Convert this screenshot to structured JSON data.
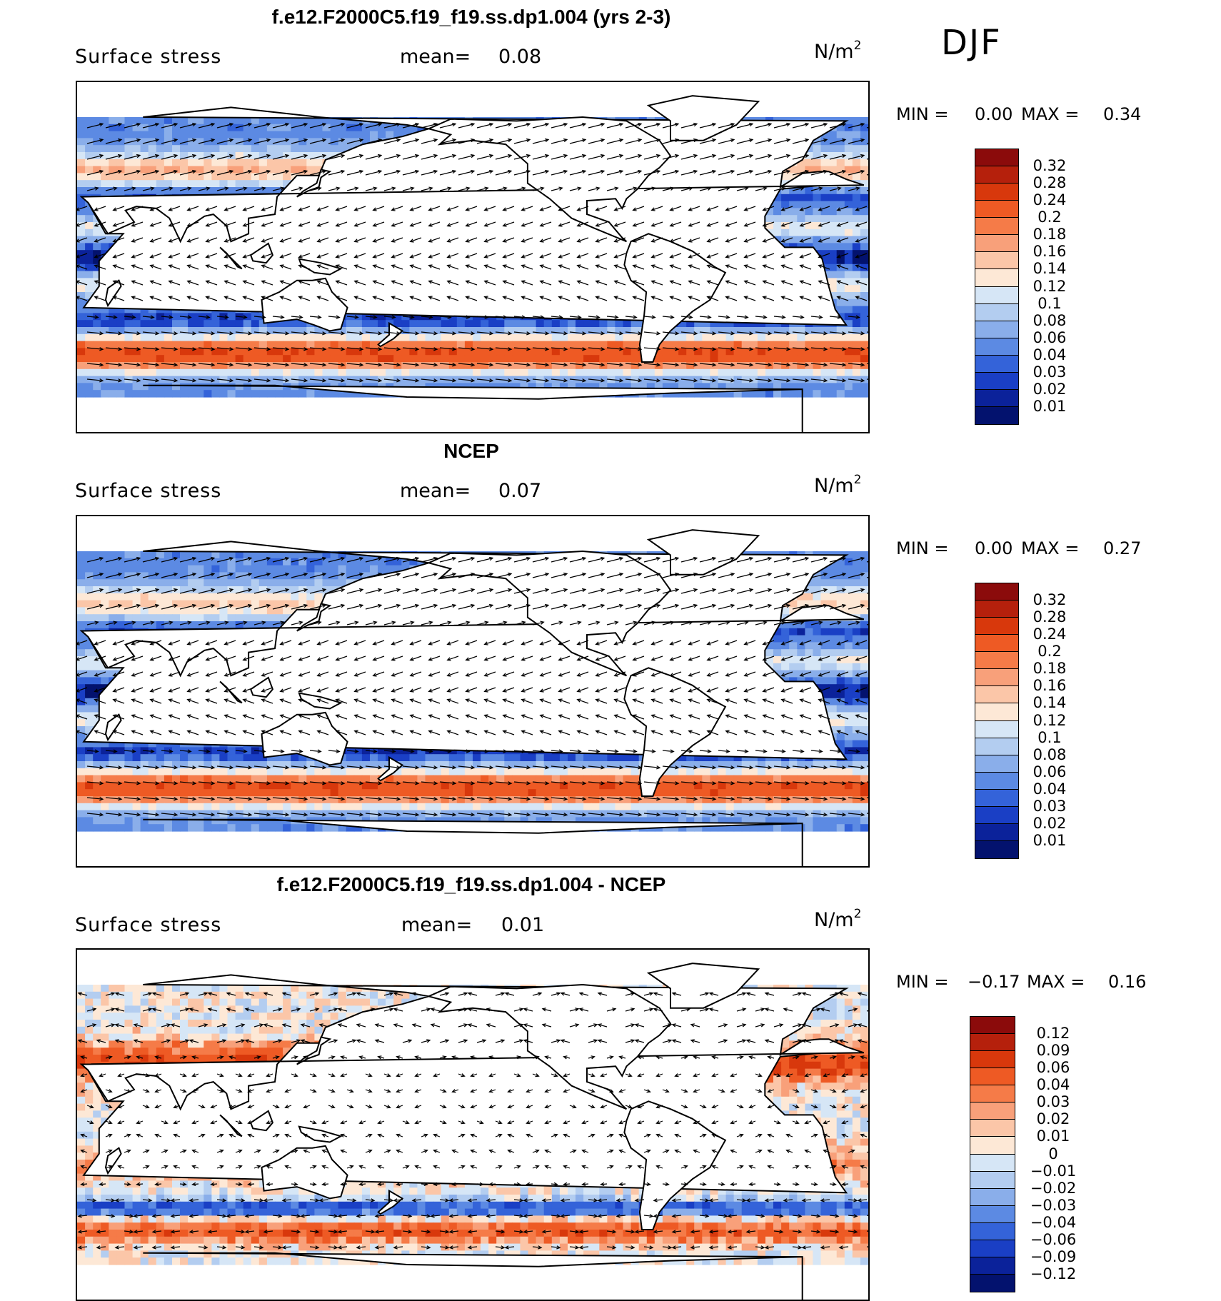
{
  "season": "DJF",
  "panels": [
    {
      "title": "f.e12.F2000C5.f19_f19.ss.dp1.004 (yrs 2-3)",
      "variable": "Surface stress",
      "mean_label": "mean=",
      "mean_value": "0.08",
      "units": "N/m",
      "units_sup": "2",
      "min_label": "MIN =",
      "min_value": "0.00",
      "max_label": "MAX =",
      "max_value": "0.34",
      "levels": [
        "0.32",
        "0.28",
        "0.24",
        "0.2",
        "0.18",
        "0.16",
        "0.14",
        "0.12",
        "0.1",
        "0.08",
        "0.06",
        "0.04",
        "0.03",
        "0.02",
        "0.01"
      ],
      "colors": [
        "#8b0b0b",
        "#b5200c",
        "#d8380c",
        "#ee5a24",
        "#f57b48",
        "#f8a07a",
        "#fbc6a8",
        "#fde8d6",
        "#d6e6f6",
        "#b3cdf0",
        "#8aaeea",
        "#5c8ae3",
        "#3463d9",
        "#1a3fc5",
        "#0b229a",
        "#03126e"
      ],
      "field": "model"
    },
    {
      "title": "NCEP",
      "variable": "Surface stress",
      "mean_label": "mean=",
      "mean_value": "0.07",
      "units": "N/m",
      "units_sup": "2",
      "min_label": "MIN =",
      "min_value": "0.00",
      "max_label": "MAX =",
      "max_value": "0.27",
      "levels": [
        "0.32",
        "0.28",
        "0.24",
        "0.2",
        "0.18",
        "0.16",
        "0.14",
        "0.12",
        "0.1",
        "0.08",
        "0.06",
        "0.04",
        "0.03",
        "0.02",
        "0.01"
      ],
      "colors": [
        "#8b0b0b",
        "#b5200c",
        "#d8380c",
        "#ee5a24",
        "#f57b48",
        "#f8a07a",
        "#fbc6a8",
        "#fde8d6",
        "#d6e6f6",
        "#b3cdf0",
        "#8aaeea",
        "#5c8ae3",
        "#3463d9",
        "#1a3fc5",
        "#0b229a",
        "#03126e"
      ],
      "field": "obs"
    },
    {
      "title": "f.e12.F2000C5.f19_f19.ss.dp1.004 - NCEP",
      "variable": "Surface stress",
      "mean_label": "mean=",
      "mean_value": "0.01",
      "units": "N/m",
      "units_sup": "2",
      "min_label": "MIN =",
      "min_value": "−0.17",
      "max_label": "MAX =",
      "max_value": "0.16",
      "levels": [
        "0.12",
        "0.09",
        "0.06",
        "0.04",
        "0.03",
        "0.02",
        "0.01",
        "0",
        "−0.01",
        "−0.02",
        "−0.03",
        "−0.04",
        "−0.06",
        "−0.09",
        "−0.12"
      ],
      "colors": [
        "#8b0b0b",
        "#b5200c",
        "#d8380c",
        "#ee5a24",
        "#f57b48",
        "#f8a07a",
        "#fbc6a8",
        "#fde8d6",
        "#d6e6f6",
        "#b3cdf0",
        "#8aaeea",
        "#5c8ae3",
        "#3463d9",
        "#1a3fc5",
        "#0b229a",
        "#03126e"
      ],
      "field": "diff"
    }
  ]
}
